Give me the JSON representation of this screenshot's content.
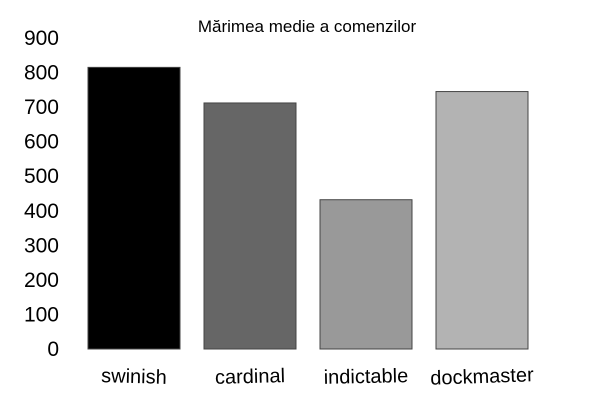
{
  "chart_data": {
    "type": "bar",
    "title": "Mărimea medie a comenzilor",
    "xlabel": "",
    "ylabel": "",
    "categories": [
      "swinish",
      "cardinal",
      "indictable",
      "dockmaster"
    ],
    "values": [
      815,
      712,
      432,
      745
    ],
    "colors": [
      "#000000",
      "#666666",
      "#999999",
      "#b3b3b3"
    ],
    "ylim": [
      0,
      900
    ],
    "yticks": [
      "0",
      "100",
      "200",
      "300",
      "400",
      "500",
      "600",
      "700",
      "800",
      "900"
    ],
    "grid": false,
    "legend": "none"
  }
}
